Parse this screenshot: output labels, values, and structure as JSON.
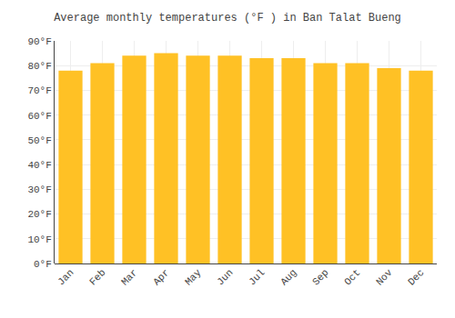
{
  "chart_data": {
    "type": "bar",
    "title": "Average monthly temperatures (°F ) in Ban Talat Bueng",
    "categories": [
      "Jan",
      "Feb",
      "Mar",
      "Apr",
      "May",
      "Jun",
      "Jul",
      "Aug",
      "Sep",
      "Oct",
      "Nov",
      "Dec"
    ],
    "values": [
      78,
      81,
      84,
      85,
      84,
      84,
      83,
      83,
      81,
      81,
      79,
      78
    ],
    "color": "#FFC125",
    "ylim": [
      0,
      90
    ],
    "yticks": [
      {
        "value": 0,
        "label": "0°F"
      },
      {
        "value": 10,
        "label": "10°F"
      },
      {
        "value": 20,
        "label": "20°F"
      },
      {
        "value": 30,
        "label": "30°F"
      },
      {
        "value": 40,
        "label": "40°F"
      },
      {
        "value": 50,
        "label": "50°F"
      },
      {
        "value": 60,
        "label": "60°F"
      },
      {
        "value": 70,
        "label": "70°F"
      },
      {
        "value": 80,
        "label": "80°F"
      },
      {
        "value": 90,
        "label": "90°F"
      }
    ],
    "grid": true
  }
}
